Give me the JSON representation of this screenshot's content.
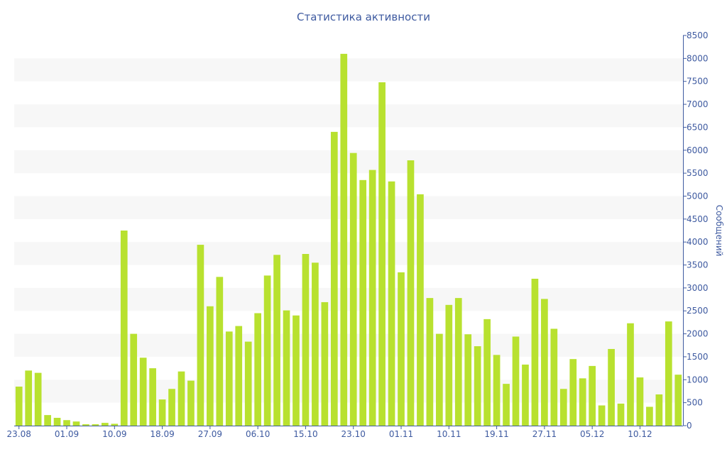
{
  "chart_data": {
    "type": "bar",
    "title": "Статистика активности",
    "ylabel": "Сообщений",
    "xlabel": "",
    "ylim": [
      0,
      8500
    ],
    "y_ticks": [
      0,
      500,
      1000,
      1500,
      2000,
      2500,
      3000,
      3500,
      4000,
      4500,
      5000,
      5500,
      6000,
      6500,
      7000,
      7500,
      8000,
      8500
    ],
    "y_axis_side": "right",
    "grid": "alternating horizontal bands",
    "x_tick_labels": [
      {
        "label": "23.08",
        "index": 0
      },
      {
        "label": "01.09",
        "index": 5
      },
      {
        "label": "10.09",
        "index": 10
      },
      {
        "label": "18.09",
        "index": 15
      },
      {
        "label": "27.09",
        "index": 20
      },
      {
        "label": "06.10",
        "index": 25
      },
      {
        "label": "15.10",
        "index": 30
      },
      {
        "label": "23.10",
        "index": 35
      },
      {
        "label": "01.11",
        "index": 40
      },
      {
        "label": "10.11",
        "index": 45
      },
      {
        "label": "19.11",
        "index": 50
      },
      {
        "label": "27.11",
        "index": 55
      },
      {
        "label": "05.12",
        "index": 60
      },
      {
        "label": "10.12",
        "index": 65
      }
    ],
    "values": [
      850,
      1200,
      1150,
      230,
      170,
      120,
      90,
      30,
      30,
      60,
      40,
      4250,
      2000,
      1480,
      1250,
      570,
      800,
      1180,
      980,
      3940,
      2600,
      3240,
      2050,
      2170,
      1830,
      2450,
      3270,
      3720,
      2510,
      2400,
      3740,
      3550,
      2690,
      6400,
      8100,
      5940,
      5350,
      5570,
      7480,
      5320,
      3340,
      5780,
      5040,
      2780,
      2000,
      2630,
      2780,
      1990,
      1730,
      2320,
      1540,
      910,
      1940,
      1330,
      3200,
      2760,
      2110,
      800,
      1450,
      1030,
      1300,
      440,
      1670,
      480,
      2230,
      1050,
      410,
      680,
      2270,
      1110
    ],
    "colors": {
      "bar": "#b8e12f",
      "text": "#3e5aa0",
      "band": "#f7f7f7"
    }
  }
}
